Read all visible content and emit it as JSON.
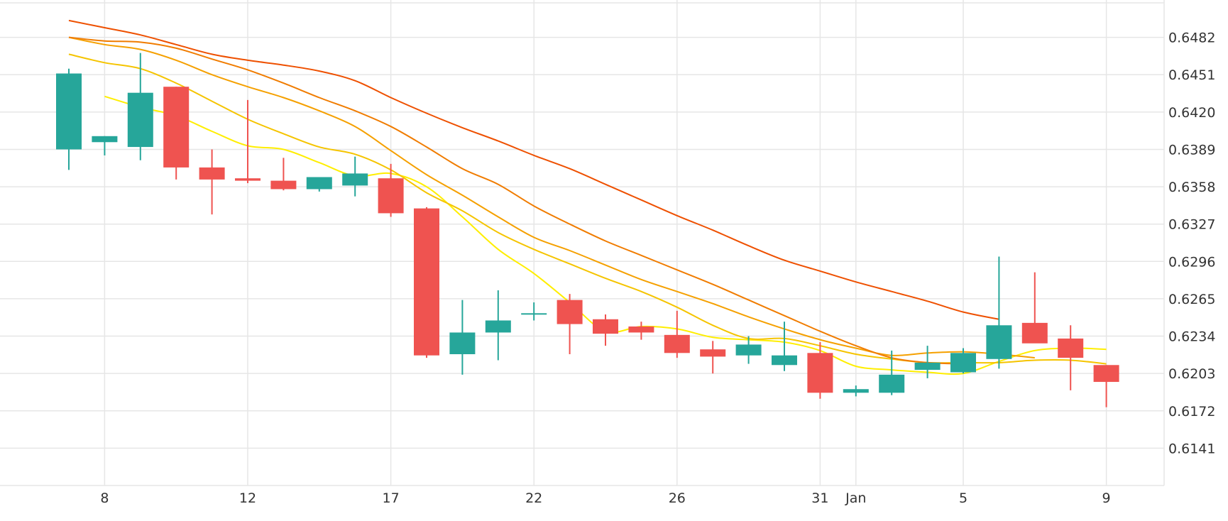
{
  "chart_data": {
    "type": "candlestick",
    "grid": true,
    "ylim": [
      0.611,
      0.6513
    ],
    "y_ticks": [
      "0.6141",
      "0.6172",
      "0.6203",
      "0.6234",
      "0.6265",
      "0.6296",
      "0.6327",
      "0.6358",
      "0.6389",
      "0.6420",
      "0.6451",
      "0.6482"
    ],
    "x_ticks": [
      {
        "label": "8",
        "index": 1
      },
      {
        "label": "12",
        "index": 5
      },
      {
        "label": "17",
        "index": 9
      },
      {
        "label": "22",
        "index": 13
      },
      {
        "label": "26",
        "index": 17
      },
      {
        "label": "31",
        "index": 21
      },
      {
        "label": "Jan",
        "index": 22
      },
      {
        "label": "5",
        "index": 25
      },
      {
        "label": "9",
        "index": 29
      }
    ],
    "candles": [
      {
        "o": 0.6389,
        "h": 0.6456,
        "l": 0.6372,
        "c": 0.6452
      },
      {
        "o": 0.6395,
        "h": 0.64,
        "l": 0.6384,
        "c": 0.64
      },
      {
        "o": 0.6391,
        "h": 0.6469,
        "l": 0.638,
        "c": 0.6436
      },
      {
        "o": 0.6441,
        "h": 0.6441,
        "l": 0.6364,
        "c": 0.6374
      },
      {
        "o": 0.6374,
        "h": 0.6389,
        "l": 0.6335,
        "c": 0.6364
      },
      {
        "o": 0.6365,
        "h": 0.643,
        "l": 0.6361,
        "c": 0.6363
      },
      {
        "o": 0.6363,
        "h": 0.6382,
        "l": 0.6355,
        "c": 0.6356
      },
      {
        "o": 0.6356,
        "h": 0.6365,
        "l": 0.6354,
        "c": 0.6366
      },
      {
        "o": 0.6359,
        "h": 0.6383,
        "l": 0.635,
        "c": 0.6369
      },
      {
        "o": 0.6365,
        "h": 0.6377,
        "l": 0.6333,
        "c": 0.6336
      },
      {
        "o": 0.634,
        "h": 0.6341,
        "l": 0.6216,
        "c": 0.6218
      },
      {
        "o": 0.6219,
        "h": 0.6264,
        "l": 0.6202,
        "c": 0.6237
      },
      {
        "o": 0.6237,
        "h": 0.6272,
        "l": 0.6214,
        "c": 0.6247
      },
      {
        "o": 0.6253,
        "h": 0.6262,
        "l": 0.6247,
        "c": 0.6253
      },
      {
        "o": 0.6264,
        "h": 0.6269,
        "l": 0.6219,
        "c": 0.6244
      },
      {
        "o": 0.6248,
        "h": 0.6252,
        "l": 0.6226,
        "c": 0.6236
      },
      {
        "o": 0.6242,
        "h": 0.6246,
        "l": 0.6231,
        "c": 0.6237
      },
      {
        "o": 0.6235,
        "h": 0.6255,
        "l": 0.6216,
        "c": 0.622
      },
      {
        "o": 0.6223,
        "h": 0.623,
        "l": 0.6203,
        "c": 0.6217
      },
      {
        "o": 0.6218,
        "h": 0.6234,
        "l": 0.6211,
        "c": 0.6227
      },
      {
        "o": 0.621,
        "h": 0.6246,
        "l": 0.6205,
        "c": 0.6218
      },
      {
        "o": 0.622,
        "h": 0.6229,
        "l": 0.6182,
        "c": 0.6187
      },
      {
        "o": 0.6187,
        "h": 0.6193,
        "l": 0.6184,
        "c": 0.619
      },
      {
        "o": 0.6187,
        "h": 0.6222,
        "l": 0.6185,
        "c": 0.6202
      },
      {
        "o": 0.6206,
        "h": 0.6226,
        "l": 0.6199,
        "c": 0.6212
      },
      {
        "o": 0.6204,
        "h": 0.6224,
        "l": 0.6203,
        "c": 0.622
      },
      {
        "o": 0.6215,
        "h": 0.63,
        "l": 0.6207,
        "c": 0.6243
      },
      {
        "o": 0.6245,
        "h": 0.6287,
        "l": 0.6229,
        "c": 0.6228
      },
      {
        "o": 0.6232,
        "h": 0.6243,
        "l": 0.6189,
        "c": 0.6216
      },
      {
        "o": 0.621,
        "h": 0.621,
        "l": 0.6175,
        "c": 0.6196
      }
    ],
    "ma_lines": [
      {
        "color": "#ffee00",
        "values": [
          null,
          0.6433,
          0.6424,
          0.6417,
          0.6404,
          0.6392,
          0.6389,
          0.6378,
          0.6367,
          0.6369,
          0.6358,
          0.6333,
          0.6306,
          0.6286,
          0.6262,
          0.6238,
          0.6242,
          0.624,
          0.6233,
          0.6231,
          0.6229,
          0.6222,
          0.6209,
          0.6206,
          0.6204,
          0.6203,
          0.6213,
          0.6222,
          0.6224,
          0.6223
        ]
      },
      {
        "color": "#f5c400",
        "values": [
          0.6468,
          0.6461,
          0.6456,
          0.6444,
          0.6429,
          0.6414,
          0.6402,
          0.6391,
          0.6385,
          0.6372,
          0.6353,
          0.6338,
          0.632,
          0.6306,
          0.6294,
          0.6282,
          0.6271,
          0.6258,
          0.6243,
          0.6232,
          0.6232,
          0.6226,
          0.6219,
          0.6215,
          0.6212,
          0.6212,
          0.6212,
          0.6214,
          0.6214,
          0.6211
        ]
      },
      {
        "color": "#f5a000",
        "values": [
          0.6482,
          0.6476,
          0.6472,
          0.6463,
          0.6451,
          0.6441,
          0.6432,
          0.6421,
          0.6408,
          0.6388,
          0.6368,
          0.6351,
          0.6333,
          0.6316,
          0.6305,
          0.6293,
          0.6281,
          0.6271,
          0.6261,
          0.625,
          0.624,
          0.6231,
          0.6224,
          0.6218,
          0.622,
          0.6221,
          0.6219,
          0.6216
        ]
      },
      {
        "color": "#f07c00",
        "values": [
          0.6482,
          0.6479,
          0.6478,
          0.6473,
          0.6464,
          0.6455,
          0.6444,
          0.6432,
          0.6421,
          0.6408,
          0.6391,
          0.6373,
          0.636,
          0.6342,
          0.6327,
          0.6313,
          0.6301,
          0.6289,
          0.6277,
          0.6264,
          0.6251,
          0.6238,
          0.6226,
          0.6216,
          0.6212,
          0.6211
        ]
      },
      {
        "color": "#ee5000",
        "values": [
          0.6496,
          0.649,
          0.6484,
          0.6476,
          0.6468,
          0.6463,
          0.6459,
          0.6454,
          0.6446,
          0.6432,
          0.6419,
          0.6407,
          0.6396,
          0.6384,
          0.6373,
          0.636,
          0.6347,
          0.6334,
          0.6322,
          0.6309,
          0.6297,
          0.6288,
          0.6279,
          0.6271,
          0.6263,
          0.6254,
          0.6248
        ]
      }
    ],
    "colors": {
      "up": "#26a69a",
      "down": "#ef5350",
      "grid": "#e6e6e6",
      "axis_text": "#333333"
    }
  }
}
